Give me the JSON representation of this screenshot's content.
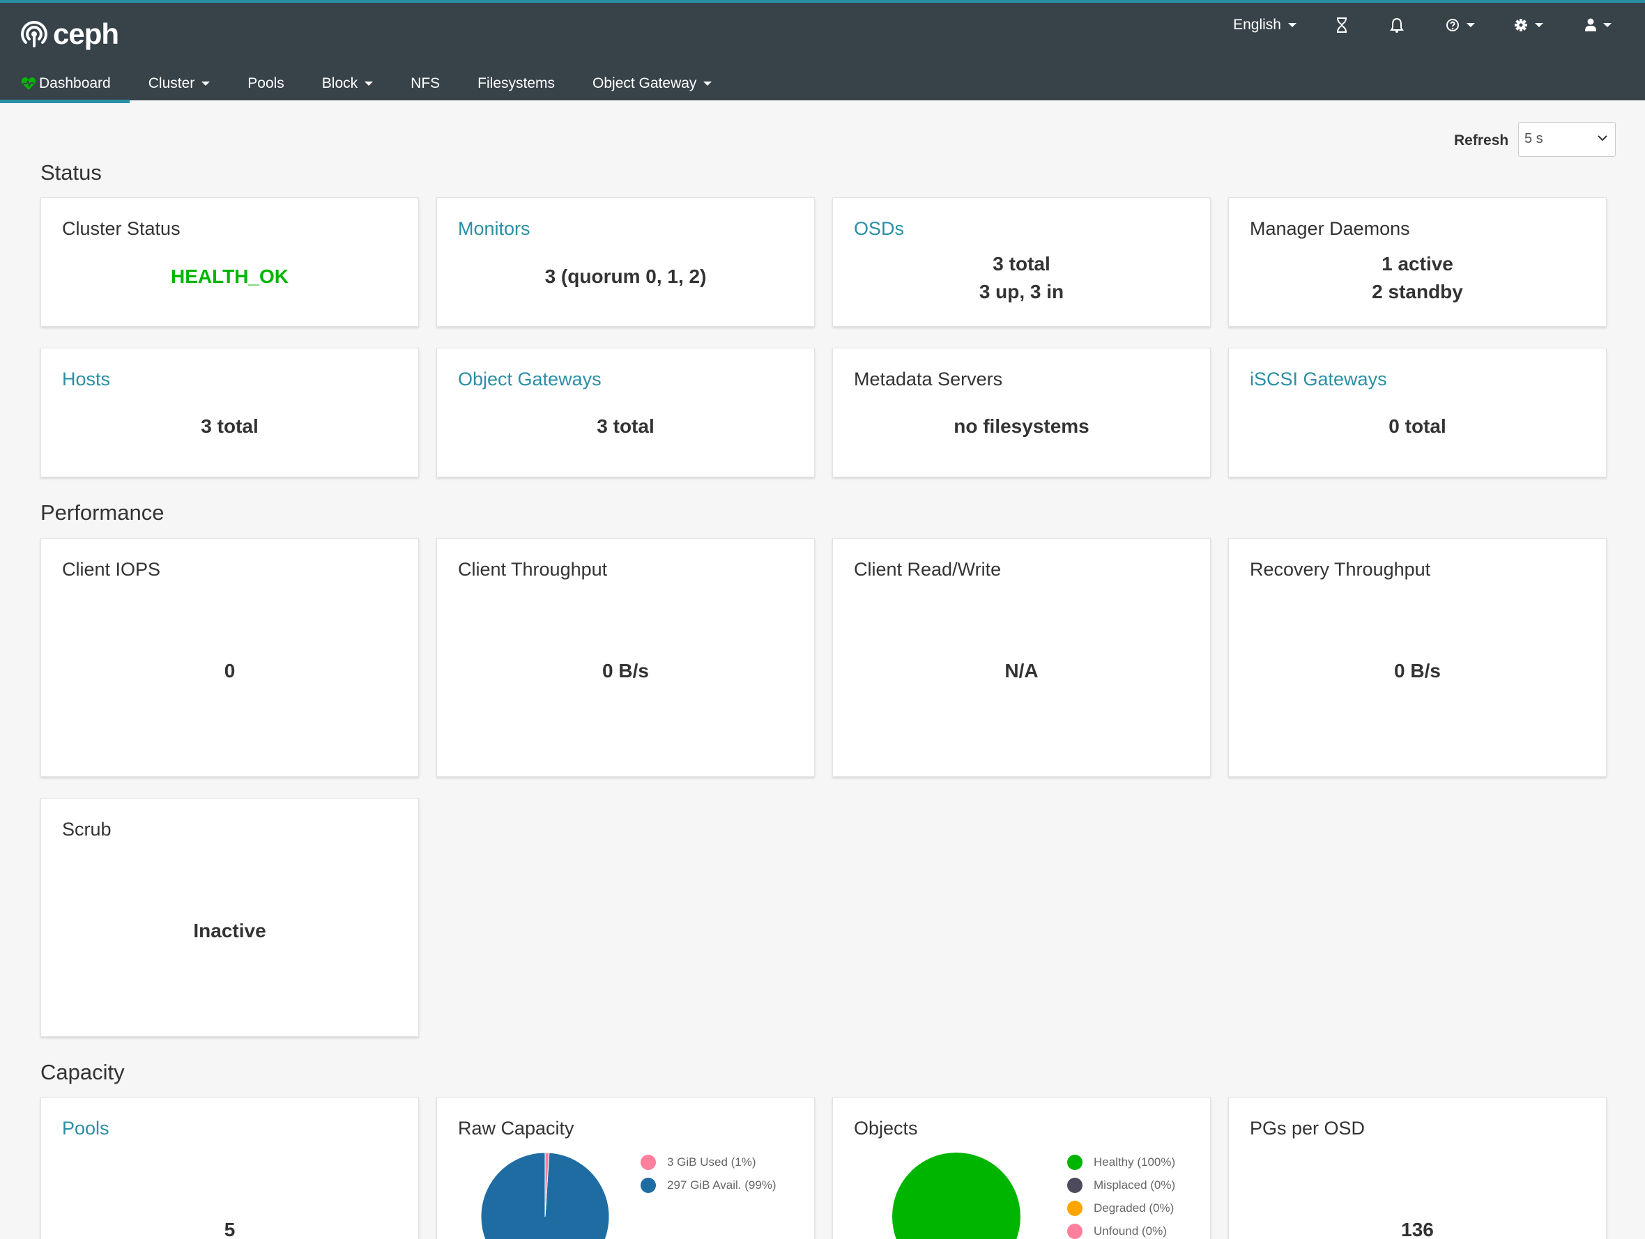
{
  "header": {
    "logo_text": "ceph",
    "language": "English",
    "icons": [
      "hourglass-icon",
      "bell-icon",
      "help-icon",
      "gear-icon",
      "user-icon"
    ]
  },
  "nav": {
    "items": [
      {
        "label": "Dashboard",
        "active": true
      },
      {
        "label": "Cluster",
        "dropdown": true
      },
      {
        "label": "Pools"
      },
      {
        "label": "Block",
        "dropdown": true
      },
      {
        "label": "NFS"
      },
      {
        "label": "Filesystems"
      },
      {
        "label": "Object Gateway",
        "dropdown": true
      }
    ]
  },
  "refresh": {
    "label": "Refresh",
    "value": "5 s"
  },
  "status": {
    "title": "Status",
    "cluster_status": {
      "title": "Cluster Status",
      "value": "HEALTH_OK"
    },
    "monitors": {
      "title": "Monitors",
      "value": "3 (quorum 0, 1, 2)"
    },
    "osds": {
      "title": "OSDs",
      "line1": "3 total",
      "line2": "3 up, 3 in"
    },
    "managers": {
      "title": "Manager Daemons",
      "line1": "1 active",
      "line2": "2 standby"
    },
    "hosts": {
      "title": "Hosts",
      "value": "3 total"
    },
    "object_gateways": {
      "title": "Object Gateways",
      "value": "3 total"
    },
    "metadata_servers": {
      "title": "Metadata Servers",
      "value": "no filesystems"
    },
    "iscsi_gateways": {
      "title": "iSCSI Gateways",
      "value": "0 total"
    }
  },
  "performance": {
    "title": "Performance",
    "client_iops": {
      "title": "Client IOPS",
      "value": "0"
    },
    "client_throughput": {
      "title": "Client Throughput",
      "value": "0 B/s"
    },
    "client_rw": {
      "title": "Client Read/Write",
      "value": "N/A"
    },
    "recovery_throughput": {
      "title": "Recovery Throughput",
      "value": "0 B/s"
    },
    "scrub": {
      "title": "Scrub",
      "value": "Inactive"
    }
  },
  "capacity": {
    "title": "Capacity",
    "pools": {
      "title": "Pools",
      "value": "5"
    },
    "raw_capacity": {
      "title": "Raw Capacity",
      "legend": [
        {
          "label": "3 GiB Used (1%)",
          "color": "#ff7f9c",
          "fraction": 0.01
        },
        {
          "label": "297 GiB Avail. (99%)",
          "color": "#1f6ca3",
          "fraction": 0.99
        }
      ]
    },
    "objects": {
      "title": "Objects",
      "legend": [
        {
          "label": "Healthy (100%)",
          "color": "#00b500",
          "fraction": 1.0
        },
        {
          "label": "Misplaced (0%)",
          "color": "#4d4a5e",
          "fraction": 0
        },
        {
          "label": "Degraded (0%)",
          "color": "#ffa500",
          "fraction": 0
        },
        {
          "label": "Unfound (0%)",
          "color": "#ff7f9c",
          "fraction": 0
        }
      ]
    },
    "pgs_per_osd": {
      "title": "PGs per OSD",
      "value": "136"
    }
  },
  "colors": {
    "header_bg": "#374249",
    "accent": "#2a8fa5",
    "health_ok": "#00b500"
  }
}
